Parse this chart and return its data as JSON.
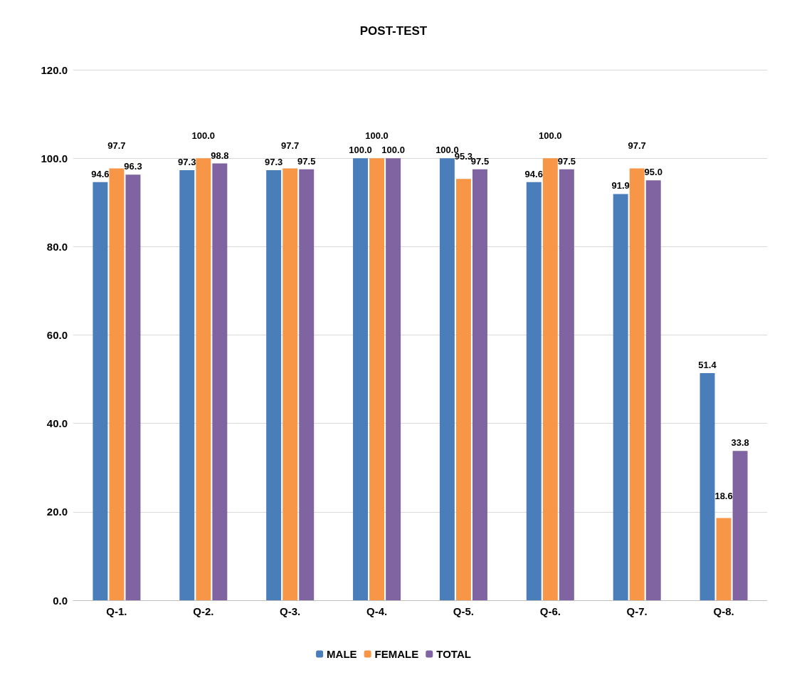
{
  "chart_data": {
    "type": "bar",
    "title": "POST-TEST",
    "categories": [
      "Q-1.",
      "Q-2.",
      "Q-3.",
      "Q-4.",
      "Q-5.",
      "Q-6.",
      "Q-7.",
      "Q-8."
    ],
    "series": [
      {
        "name": "MALE",
        "color": "#4a7ebb",
        "values": [
          94.6,
          97.3,
          97.3,
          100,
          100,
          94.6,
          91.9,
          51.4
        ],
        "value_labels": [
          "94.6",
          "97.3",
          "97.3",
          "100.0",
          "100.0",
          "94.6",
          "91.9",
          "51.4"
        ]
      },
      {
        "name": "FEMALE",
        "color": "#f79646",
        "values": [
          97.7,
          100,
          97.7,
          100,
          95.3,
          100,
          97.7,
          18.6
        ],
        "value_labels": [
          "97.7",
          "100.0",
          "97.7",
          "100.0",
          "95.3",
          "100.0",
          "97.7",
          "18.6"
        ]
      },
      {
        "name": "TOTAL",
        "color": "#8064a2",
        "values": [
          96.3,
          98.8,
          97.5,
          100,
          97.5,
          97.5,
          95.0,
          33.8
        ],
        "value_labels": [
          "96.3",
          "98.8",
          "97.5",
          "100.0",
          "97.5",
          "97.5",
          "95.0",
          "33.8"
        ]
      }
    ],
    "ylim": [
      0,
      120
    ],
    "yticks": [
      {
        "value": 0,
        "label": "0.0"
      },
      {
        "value": 20,
        "label": "20.0"
      },
      {
        "value": 40,
        "label": "40.0"
      },
      {
        "value": 60,
        "label": "60.0"
      },
      {
        "value": 80,
        "label": "80.0"
      },
      {
        "value": 100,
        "label": "100.0"
      },
      {
        "value": 120,
        "label": "120.0"
      }
    ],
    "grid": "y",
    "legend": "bottom"
  }
}
